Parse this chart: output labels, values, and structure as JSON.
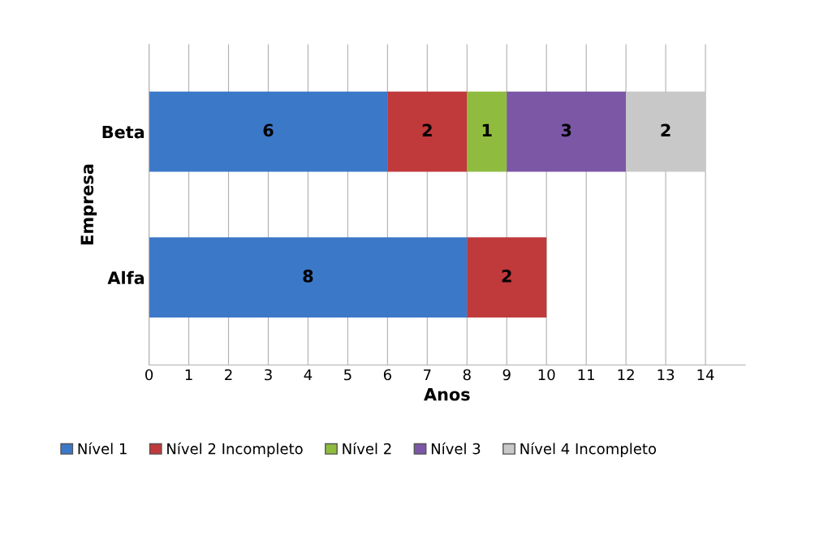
{
  "chart_data": {
    "type": "bar",
    "orientation": "horizontal",
    "stacked": true,
    "xlabel": "Anos",
    "ylabel": "Empresa",
    "categories": [
      "Beta",
      "Alfa"
    ],
    "series": [
      {
        "name": "Nível 1",
        "color": "#3b78c8",
        "values": [
          6,
          8
        ]
      },
      {
        "name": "Nível 2 Incompleto",
        "color": "#c0393b",
        "values": [
          2,
          2
        ]
      },
      {
        "name": "Nível 2",
        "color": "#8fbc3f",
        "values": [
          1,
          null
        ]
      },
      {
        "name": "Nível 3",
        "color": "#7b57a6",
        "values": [
          3,
          null
        ]
      },
      {
        "name": "Nível 4 Incompleto",
        "color": "#c8c8c8",
        "values": [
          2,
          null
        ]
      }
    ],
    "xlim": [
      0,
      15
    ],
    "xticks": [
      0,
      1,
      2,
      3,
      4,
      5,
      6,
      7,
      8,
      9,
      10,
      11,
      12,
      13,
      14
    ],
    "grid": "x",
    "legend": "bottom",
    "data_labels": true
  }
}
